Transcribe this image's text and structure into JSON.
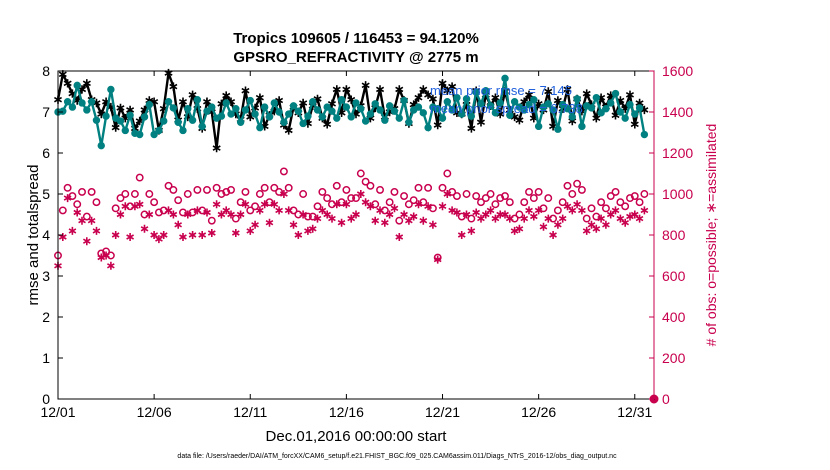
{
  "chart_data": {
    "type": "line",
    "title": "Tropics 109605 / 116453 = 94.120%",
    "subtitle": "GPSRO_REFRACTIVITY @ 2775 m",
    "xlabel": "Dec.01,2016 00:00:00 start",
    "ylabel": "rmse and totalspread",
    "y2label": "# of obs: o=possible; ∗=assimilated",
    "footnote": "data file: /Users/raeder/DAI/ATM_forcXX/CAM6_setup/f.e21.FHIST_BGC.f09_025.CAM6assim.011/Diags_NTrS_2016-12/obs_diag_output.nc",
    "xlim": [
      1,
      32
    ],
    "ylim": [
      0,
      8
    ],
    "y2lim": [
      0,
      1600
    ],
    "x_ticks": [
      1,
      6,
      11,
      16,
      21,
      26,
      31
    ],
    "x_tick_labels": [
      "12/01",
      "12/06",
      "12/11",
      "12/16",
      "12/21",
      "12/26",
      "12/31"
    ],
    "y_ticks": [
      0,
      1,
      2,
      3,
      4,
      5,
      6,
      7,
      8
    ],
    "y2_ticks": [
      0,
      200,
      400,
      600,
      800,
      1000,
      1200,
      1400,
      1600
    ],
    "legend": [
      "mean prior rmse = 7.145",
      "mean prior spread = 6.738"
    ],
    "legend_location": "top-right",
    "series": [
      {
        "name": "rmse",
        "color": "#000000",
        "marker": "asterisk",
        "axis": "left",
        "x": [
          1.0,
          1.25,
          1.5,
          1.75,
          2.0,
          2.25,
          2.5,
          2.75,
          3.0,
          3.25,
          3.5,
          3.75,
          4.0,
          4.25,
          4.5,
          4.75,
          5.0,
          5.25,
          5.5,
          5.75,
          6.0,
          6.25,
          6.5,
          6.75,
          7.0,
          7.25,
          7.5,
          7.75,
          8.0,
          8.25,
          8.5,
          8.75,
          9.0,
          9.25,
          9.5,
          9.75,
          10.0,
          10.25,
          10.5,
          10.75,
          11.0,
          11.25,
          11.5,
          11.75,
          12.0,
          12.25,
          12.5,
          12.75,
          13.0,
          13.25,
          13.5,
          13.75,
          14.0,
          14.25,
          14.5,
          14.75,
          15.0,
          15.25,
          15.5,
          15.75,
          16.0,
          16.25,
          16.5,
          16.75,
          17.0,
          17.25,
          17.5,
          17.75,
          18.0,
          18.25,
          18.5,
          18.75,
          19.0,
          19.25,
          19.5,
          19.75,
          20.0,
          20.25,
          20.5,
          20.75,
          21.0,
          21.25,
          21.5,
          21.75,
          22.0,
          22.25,
          22.5,
          22.75,
          23.0,
          23.25,
          23.5,
          23.75,
          24.0,
          24.25,
          24.5,
          24.75,
          25.0,
          25.25,
          25.5,
          25.75,
          26.0,
          26.25,
          26.5,
          26.75,
          27.0,
          27.25,
          27.5,
          27.75,
          28.0,
          28.25,
          28.5,
          28.75,
          29.0,
          29.25,
          29.5,
          29.75,
          30.0,
          30.25,
          30.5,
          30.75,
          31.0,
          31.25,
          31.5
        ],
        "values": [
          7.3,
          7.92,
          7.7,
          7.45,
          7.28,
          7.55,
          7.7,
          7.3,
          7.22,
          6.95,
          7.25,
          7.12,
          6.62,
          7.1,
          6.85,
          7.05,
          6.6,
          6.78,
          7.05,
          7.28,
          7.25,
          6.55,
          7.08,
          7.95,
          7.62,
          6.8,
          7.25,
          6.88,
          7.42,
          7.08,
          6.6,
          7.25,
          7.0,
          6.12,
          7.2,
          7.4,
          7.25,
          6.95,
          6.82,
          7.52,
          6.88,
          7.1,
          7.35,
          6.65,
          6.92,
          7.02,
          7.28,
          6.68,
          6.55,
          7.12,
          6.98,
          7.22,
          6.72,
          7.15,
          7.32,
          6.85,
          6.7,
          7.2,
          7.55,
          6.98,
          7.55,
          7.3,
          6.95,
          7.15,
          7.65,
          6.85,
          7.1,
          7.55,
          6.88,
          7.0,
          7.08,
          7.55,
          7.28,
          6.72,
          7.18,
          7.35,
          7.55,
          7.42,
          7.32,
          6.68,
          7.7,
          7.52,
          7.62,
          6.98,
          6.95,
          7.18,
          6.6,
          7.52,
          6.75,
          7.42,
          7.15,
          7.35,
          6.95,
          7.5,
          7.05,
          6.88,
          6.8,
          7.25,
          7.42,
          6.85,
          7.2,
          7.05,
          7.5,
          6.65,
          7.28,
          7.08,
          7.55,
          6.78,
          7.32,
          7.02,
          7.45,
          7.18,
          6.85,
          7.35,
          7.12,
          7.4,
          6.92,
          7.28,
          7.08,
          7.42,
          6.7,
          7.22,
          7.05
        ]
      },
      {
        "name": "spread",
        "color": "#008080",
        "marker": "circle",
        "axis": "left",
        "x": [
          1.0,
          1.25,
          1.5,
          1.75,
          2.0,
          2.25,
          2.5,
          2.75,
          3.0,
          3.25,
          3.5,
          3.75,
          4.0,
          4.25,
          4.5,
          4.75,
          5.0,
          5.25,
          5.5,
          5.75,
          6.0,
          6.25,
          6.5,
          6.75,
          7.0,
          7.25,
          7.5,
          7.75,
          8.0,
          8.25,
          8.5,
          8.75,
          9.0,
          9.25,
          9.5,
          9.75,
          10.0,
          10.25,
          10.5,
          10.75,
          11.0,
          11.25,
          11.5,
          11.75,
          12.0,
          12.25,
          12.5,
          12.75,
          13.0,
          13.25,
          13.5,
          13.75,
          14.0,
          14.25,
          14.5,
          14.75,
          15.0,
          15.25,
          15.5,
          15.75,
          16.0,
          16.25,
          16.5,
          16.75,
          17.0,
          17.25,
          17.5,
          17.75,
          18.0,
          18.25,
          18.5,
          18.75,
          19.0,
          19.25,
          19.5,
          19.75,
          20.0,
          20.25,
          20.5,
          20.75,
          21.0,
          21.25,
          21.5,
          21.75,
          22.0,
          22.25,
          22.5,
          22.75,
          23.0,
          23.25,
          23.5,
          23.75,
          24.0,
          24.25,
          24.5,
          24.75,
          25.0,
          25.25,
          25.5,
          25.75,
          26.0,
          26.25,
          26.5,
          26.75,
          27.0,
          27.25,
          27.5,
          27.75,
          28.0,
          28.25,
          28.5,
          28.75,
          29.0,
          29.25,
          29.5,
          29.75,
          30.0,
          30.25,
          30.5,
          30.75,
          31.0,
          31.25,
          31.5
        ],
        "values": [
          7.0,
          7.02,
          7.25,
          7.12,
          7.65,
          7.22,
          7.05,
          7.25,
          6.8,
          6.18,
          6.9,
          7.55,
          6.85,
          6.78,
          6.55,
          6.92,
          6.48,
          6.45,
          6.88,
          7.18,
          6.45,
          6.55,
          6.78,
          7.25,
          7.1,
          6.75,
          6.55,
          7.08,
          6.8,
          7.3,
          6.65,
          7.02,
          7.12,
          6.85,
          6.9,
          7.22,
          6.95,
          7.08,
          6.75,
          7.05,
          7.28,
          6.95,
          6.62,
          7.12,
          6.88,
          7.22,
          7.0,
          6.75,
          6.95,
          7.15,
          7.02,
          6.72,
          6.9,
          7.25,
          7.05,
          6.88,
          7.12,
          7.02,
          6.85,
          7.3,
          7.12,
          6.88,
          7.22,
          7.08,
          6.78,
          6.95,
          7.2,
          7.05,
          6.8,
          7.15,
          7.02,
          6.85,
          7.28,
          6.75,
          7.05,
          7.12,
          6.98,
          6.62,
          7.12,
          7.08,
          6.85,
          7.25,
          7.05,
          7.35,
          6.95,
          7.32,
          6.9,
          7.48,
          7.2,
          7.52,
          7.15,
          6.98,
          7.22,
          7.82,
          6.92,
          7.25,
          7.12,
          7.05,
          7.18,
          7.3,
          6.65,
          7.12,
          7.2,
          7.05,
          6.58,
          7.18,
          7.08,
          6.88,
          7.32,
          6.65,
          7.15,
          7.1,
          7.35,
          6.98,
          7.08,
          7.22,
          7.45,
          7.0,
          6.85,
          7.18,
          6.95,
          7.1,
          6.45
        ]
      },
      {
        "name": "obs possible",
        "color": "#c8004e",
        "marker": "open-circle",
        "axis": "right",
        "x": [
          1.0,
          1.25,
          1.5,
          1.75,
          2.0,
          2.25,
          2.5,
          2.75,
          3.0,
          3.25,
          3.5,
          3.75,
          4.0,
          4.25,
          4.5,
          4.75,
          5.0,
          5.25,
          5.5,
          5.75,
          6.0,
          6.25,
          6.5,
          6.75,
          7.0,
          7.25,
          7.5,
          7.75,
          8.0,
          8.25,
          8.5,
          8.75,
          9.0,
          9.25,
          9.5,
          9.75,
          10.0,
          10.25,
          10.5,
          10.75,
          11.0,
          11.25,
          11.5,
          11.75,
          12.0,
          12.25,
          12.5,
          12.75,
          13.0,
          13.25,
          13.5,
          13.75,
          14.0,
          14.25,
          14.5,
          14.75,
          15.0,
          15.25,
          15.5,
          15.75,
          16.0,
          16.25,
          16.5,
          16.75,
          17.0,
          17.25,
          17.5,
          17.75,
          18.0,
          18.25,
          18.5,
          18.75,
          19.0,
          19.25,
          19.5,
          19.75,
          20.0,
          20.25,
          20.5,
          20.75,
          21.0,
          21.25,
          21.5,
          21.75,
          22.0,
          22.25,
          22.5,
          22.75,
          23.0,
          23.25,
          23.5,
          23.75,
          24.0,
          24.25,
          24.5,
          24.75,
          25.0,
          25.25,
          25.5,
          25.75,
          26.0,
          26.25,
          26.5,
          26.75,
          27.0,
          27.25,
          27.5,
          27.75,
          28.0,
          28.25,
          28.5,
          28.75,
          29.0,
          29.25,
          29.5,
          29.75,
          30.0,
          30.25,
          30.5,
          30.75,
          31.0,
          31.25,
          31.5
        ],
        "values": [
          700,
          920,
          1030,
          990,
          950,
          1010,
          890,
          1010,
          960,
          710,
          720,
          700,
          930,
          980,
          1000,
          940,
          1000,
          1080,
          900,
          1000,
          960,
          910,
          920,
          1040,
          1020,
          970,
          910,
          1000,
          910,
          1020,
          920,
          1020,
          870,
          1030,
          1000,
          1010,
          1020,
          880,
          960,
          1010,
          920,
          940,
          1000,
          1030,
          960,
          1030,
          1010,
          1110,
          1030,
          920,
          900,
          1000,
          890,
          890,
          940,
          1010,
          980,
          950,
          1040,
          960,
          1020,
          980,
          980,
          1100,
          1060,
          1040,
          950,
          1020,
          920,
          960,
          1010,
          870,
          990,
          950,
          970,
          1030,
          960,
          1030,
          930,
          690,
          1030,
          1100,
          1010,
          990,
          890,
          1000,
          880,
          990,
          960,
          980,
          1000,
          950,
          980,
          990,
          960,
          880,
          900,
          960,
          1010,
          980,
          1010,
          930,
          980,
          880,
          920,
          960,
          1040,
          1000,
          1050,
          1020,
          880,
          930,
          890,
          960,
          930,
          990,
          1010,
          960,
          940,
          980,
          990,
          960,
          1000
        ]
      },
      {
        "name": "obs assimilated",
        "color": "#c8004e",
        "marker": "asterisk",
        "axis": "right",
        "x": [
          1.0,
          1.25,
          1.5,
          1.75,
          2.0,
          2.25,
          2.5,
          2.75,
          3.0,
          3.25,
          3.5,
          3.75,
          4.0,
          4.25,
          4.5,
          4.75,
          5.0,
          5.25,
          5.5,
          5.75,
          6.0,
          6.25,
          6.5,
          6.75,
          7.0,
          7.25,
          7.5,
          7.75,
          8.0,
          8.25,
          8.5,
          8.75,
          9.0,
          9.25,
          9.5,
          9.75,
          10.0,
          10.25,
          10.5,
          10.75,
          11.0,
          11.25,
          11.5,
          11.75,
          12.0,
          12.25,
          12.5,
          12.75,
          13.0,
          13.25,
          13.5,
          13.75,
          14.0,
          14.25,
          14.5,
          14.75,
          15.0,
          15.25,
          15.5,
          15.75,
          16.0,
          16.25,
          16.5,
          16.75,
          17.0,
          17.25,
          17.5,
          17.75,
          18.0,
          18.25,
          18.5,
          18.75,
          19.0,
          19.25,
          19.5,
          19.75,
          20.0,
          20.25,
          20.5,
          20.75,
          21.0,
          21.25,
          21.5,
          21.75,
          22.0,
          22.25,
          22.5,
          22.75,
          23.0,
          23.25,
          23.5,
          23.75,
          24.0,
          24.25,
          24.5,
          24.75,
          25.0,
          25.25,
          25.5,
          25.75,
          26.0,
          26.25,
          26.5,
          26.75,
          27.0,
          27.25,
          27.5,
          27.75,
          28.0,
          28.25,
          28.5,
          28.75,
          29.0,
          29.25,
          29.5,
          29.75,
          30.0,
          30.25,
          30.5,
          30.75,
          31.0,
          31.25,
          31.5
        ],
        "values": [
          650,
          790,
          980,
          820,
          910,
          870,
          770,
          870,
          820,
          690,
          700,
          650,
          800,
          900,
          940,
          790,
          940,
          950,
          830,
          900,
          800,
          780,
          800,
          920,
          900,
          850,
          790,
          900,
          800,
          920,
          800,
          910,
          810,
          950,
          900,
          920,
          900,
          810,
          900,
          950,
          820,
          850,
          920,
          950,
          860,
          950,
          920,
          1000,
          920,
          850,
          800,
          900,
          820,
          830,
          880,
          920,
          900,
          880,
          950,
          860,
          950,
          880,
          900,
          1000,
          960,
          940,
          870,
          920,
          860,
          900,
          930,
          790,
          900,
          870,
          890,
          950,
          870,
          940,
          850,
          680,
          940,
          1000,
          920,
          910,
          800,
          900,
          820,
          910,
          880,
          900,
          920,
          880,
          900,
          900,
          880,
          820,
          830,
          880,
          920,
          890,
          920,
          840,
          880,
          800,
          850,
          880,
          940,
          920,
          950,
          920,
          820,
          850,
          830,
          880,
          850,
          900,
          920,
          880,
          860,
          890,
          900,
          880,
          920
        ]
      }
    ]
  }
}
